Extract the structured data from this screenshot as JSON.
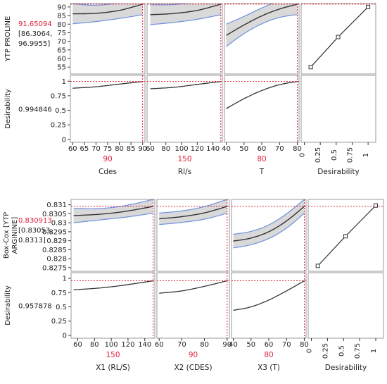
{
  "colors": {
    "curve": "#333333",
    "band": "#d9d9d9",
    "band_edge": "#6f8fe0",
    "red": "#e0203a",
    "axis": "#333333",
    "frame": "#9a9a9a",
    "text": "#222222"
  },
  "chart_data": [
    {
      "type": "line",
      "title": "",
      "response": {
        "label_line1": "YTP PROLINE",
        "label_line2": "",
        "value": "91.65094",
        "ci": "[86.3064,",
        "ci2": "96.9955]",
        "ylim": [
          51,
          92
        ],
        "yticks": [
          "55",
          "60",
          "65",
          "70",
          "75",
          "80",
          "85",
          "90"
        ],
        "tick_values": [
          55,
          60,
          65,
          70,
          75,
          80,
          85,
          90
        ]
      },
      "desirability": {
        "label": "Desirability",
        "value": "0.994846",
        "ylim": [
          -0.05,
          1.1
        ],
        "yticks": [
          "0",
          "0.25",
          "0.5",
          "0.75",
          "1"
        ],
        "tick_values": [
          0,
          0.25,
          0.5,
          0.75,
          1
        ]
      },
      "factors": [
        {
          "name": "Cdes",
          "current": "90",
          "xlim": [
            59,
            91
          ],
          "xticks": [
            "60",
            "65",
            "70",
            "75",
            "80",
            "85",
            "90"
          ],
          "xtick_values": [
            60,
            65,
            70,
            75,
            80,
            85,
            90
          ],
          "x": [
            60,
            70,
            80,
            90
          ],
          "pred": [
            86.0,
            86.3,
            88.0,
            91.6
          ],
          "lower": [
            80.2,
            81.5,
            83.3,
            85.5
          ],
          "upper": [
            91.9,
            91.0,
            92.7,
            97.6
          ],
          "desir": [
            0.88,
            0.905,
            0.95,
            0.995
          ]
        },
        {
          "name": "Rl/s",
          "current": "150",
          "xlim": [
            56,
            152
          ],
          "xticks": [
            "60",
            "80",
            "100",
            "120",
            "140"
          ],
          "xtick_values": [
            60,
            80,
            100,
            120,
            140
          ],
          "x": [
            60,
            90,
            120,
            150
          ],
          "pred": [
            85.5,
            86.2,
            88.0,
            91.6
          ],
          "lower": [
            79.7,
            81.0,
            82.8,
            85.5
          ],
          "upper": [
            91.3,
            91.4,
            93.2,
            97.7
          ],
          "desir": [
            0.87,
            0.895,
            0.945,
            0.995
          ]
        },
        {
          "name": "T",
          "current": "80",
          "xlim": [
            39,
            81
          ],
          "xticks": [
            "40",
            "50",
            "60",
            "70",
            "80"
          ],
          "xtick_values": [
            40,
            50,
            60,
            70,
            80
          ],
          "x": [
            40,
            50,
            60,
            70,
            80
          ],
          "pred": [
            73.5,
            79.5,
            84.8,
            88.8,
            91.6
          ],
          "lower": [
            67.0,
            74.5,
            80.2,
            83.9,
            85.6
          ],
          "upper": [
            80.0,
            84.5,
            89.4,
            93.7,
            97.6
          ],
          "desir": [
            0.53,
            0.7,
            0.84,
            0.94,
            0.995
          ]
        }
      ],
      "desirability_function": {
        "name": "Desirability",
        "xlim": [
          -0.05,
          1.12
        ],
        "xticks": [
          "0",
          "0.25",
          "0.5",
          "0.75",
          "1"
        ],
        "xtick_values": [
          0,
          0.25,
          0.5,
          0.75,
          1
        ],
        "x": [
          0.1,
          0.53,
          1.0
        ],
        "y": [
          55,
          72.5,
          90
        ]
      }
    },
    {
      "type": "line",
      "title": "",
      "response": {
        "label_line1": "Box-Cox [YTP",
        "label_line2": "ARGININE]",
        "value": "0.830913",
        "ci": "[0.83053,",
        "ci2": "0.8313]",
        "ylim": [
          0.8273,
          0.8313
        ],
        "yticks": [
          "0.8275",
          "0.828",
          "0.8285",
          "0.829",
          "0.8295",
          "0.83",
          "0.8305",
          "0.831"
        ],
        "tick_values": [
          0.8275,
          0.828,
          0.8285,
          0.829,
          0.8295,
          0.83,
          0.8305,
          0.831
        ]
      },
      "desirability": {
        "label": "Desirability",
        "value": "0.957878",
        "ylim": [
          -0.05,
          1.1
        ],
        "yticks": [
          "0",
          "0.25",
          "0.5",
          "0.75",
          "1"
        ],
        "tick_values": [
          0,
          0.25,
          0.5,
          0.75,
          1
        ]
      },
      "factors": [
        {
          "name": "X1 (RL/S)",
          "current": "150",
          "xlim": [
            52,
            152
          ],
          "xticks": [
            "60",
            "80",
            "100",
            "120",
            "140"
          ],
          "xtick_values": [
            60,
            80,
            100,
            120,
            140
          ],
          "x": [
            55,
            85,
            115,
            150
          ],
          "pred": [
            0.8304,
            0.83047,
            0.83062,
            0.83091
          ],
          "lower": [
            0.83,
            0.83015,
            0.8303,
            0.83053
          ],
          "upper": [
            0.8308,
            0.83079,
            0.83094,
            0.8313
          ],
          "desir": [
            0.8,
            0.83,
            0.88,
            0.958
          ]
        },
        {
          "name": "X2 (CDES)",
          "current": "90",
          "xlim": [
            59,
            91
          ],
          "xticks": [
            "60",
            "70",
            "80",
            "90"
          ],
          "xtick_values": [
            60,
            70,
            80,
            90
          ],
          "x": [
            60,
            70,
            80,
            90
          ],
          "pred": [
            0.83022,
            0.83034,
            0.83055,
            0.83091
          ],
          "lower": [
            0.8299,
            0.83002,
            0.8302,
            0.83053
          ],
          "upper": [
            0.83054,
            0.83066,
            0.8309,
            0.8313
          ],
          "desir": [
            0.74,
            0.78,
            0.86,
            0.958
          ]
        },
        {
          "name": "X3 (T)",
          "current": "80",
          "xlim": [
            39,
            81
          ],
          "xticks": [
            "40",
            "50",
            "60",
            "70",
            "80"
          ],
          "xtick_values": [
            40,
            50,
            60,
            70,
            80
          ],
          "x": [
            40,
            50,
            60,
            70,
            80
          ],
          "pred": [
            0.82898,
            0.82915,
            0.8295,
            0.8301,
            0.83091
          ],
          "lower": [
            0.8286,
            0.82878,
            0.82912,
            0.8297,
            0.83053
          ],
          "upper": [
            0.82936,
            0.82952,
            0.82988,
            0.8305,
            0.8313
          ],
          "desir": [
            0.44,
            0.5,
            0.62,
            0.78,
            0.958
          ]
        }
      ],
      "desirability_function": {
        "name": "Desirability",
        "xlim": [
          -0.05,
          1.12
        ],
        "xticks": [
          "0",
          "0.25",
          "0.5",
          "0.75",
          "1"
        ],
        "xtick_values": [
          0,
          0.25,
          0.5,
          0.75,
          1
        ],
        "x": [
          0.1,
          0.53,
          1.0
        ],
        "y": [
          0.8276,
          0.82925,
          0.83096
        ]
      }
    }
  ]
}
